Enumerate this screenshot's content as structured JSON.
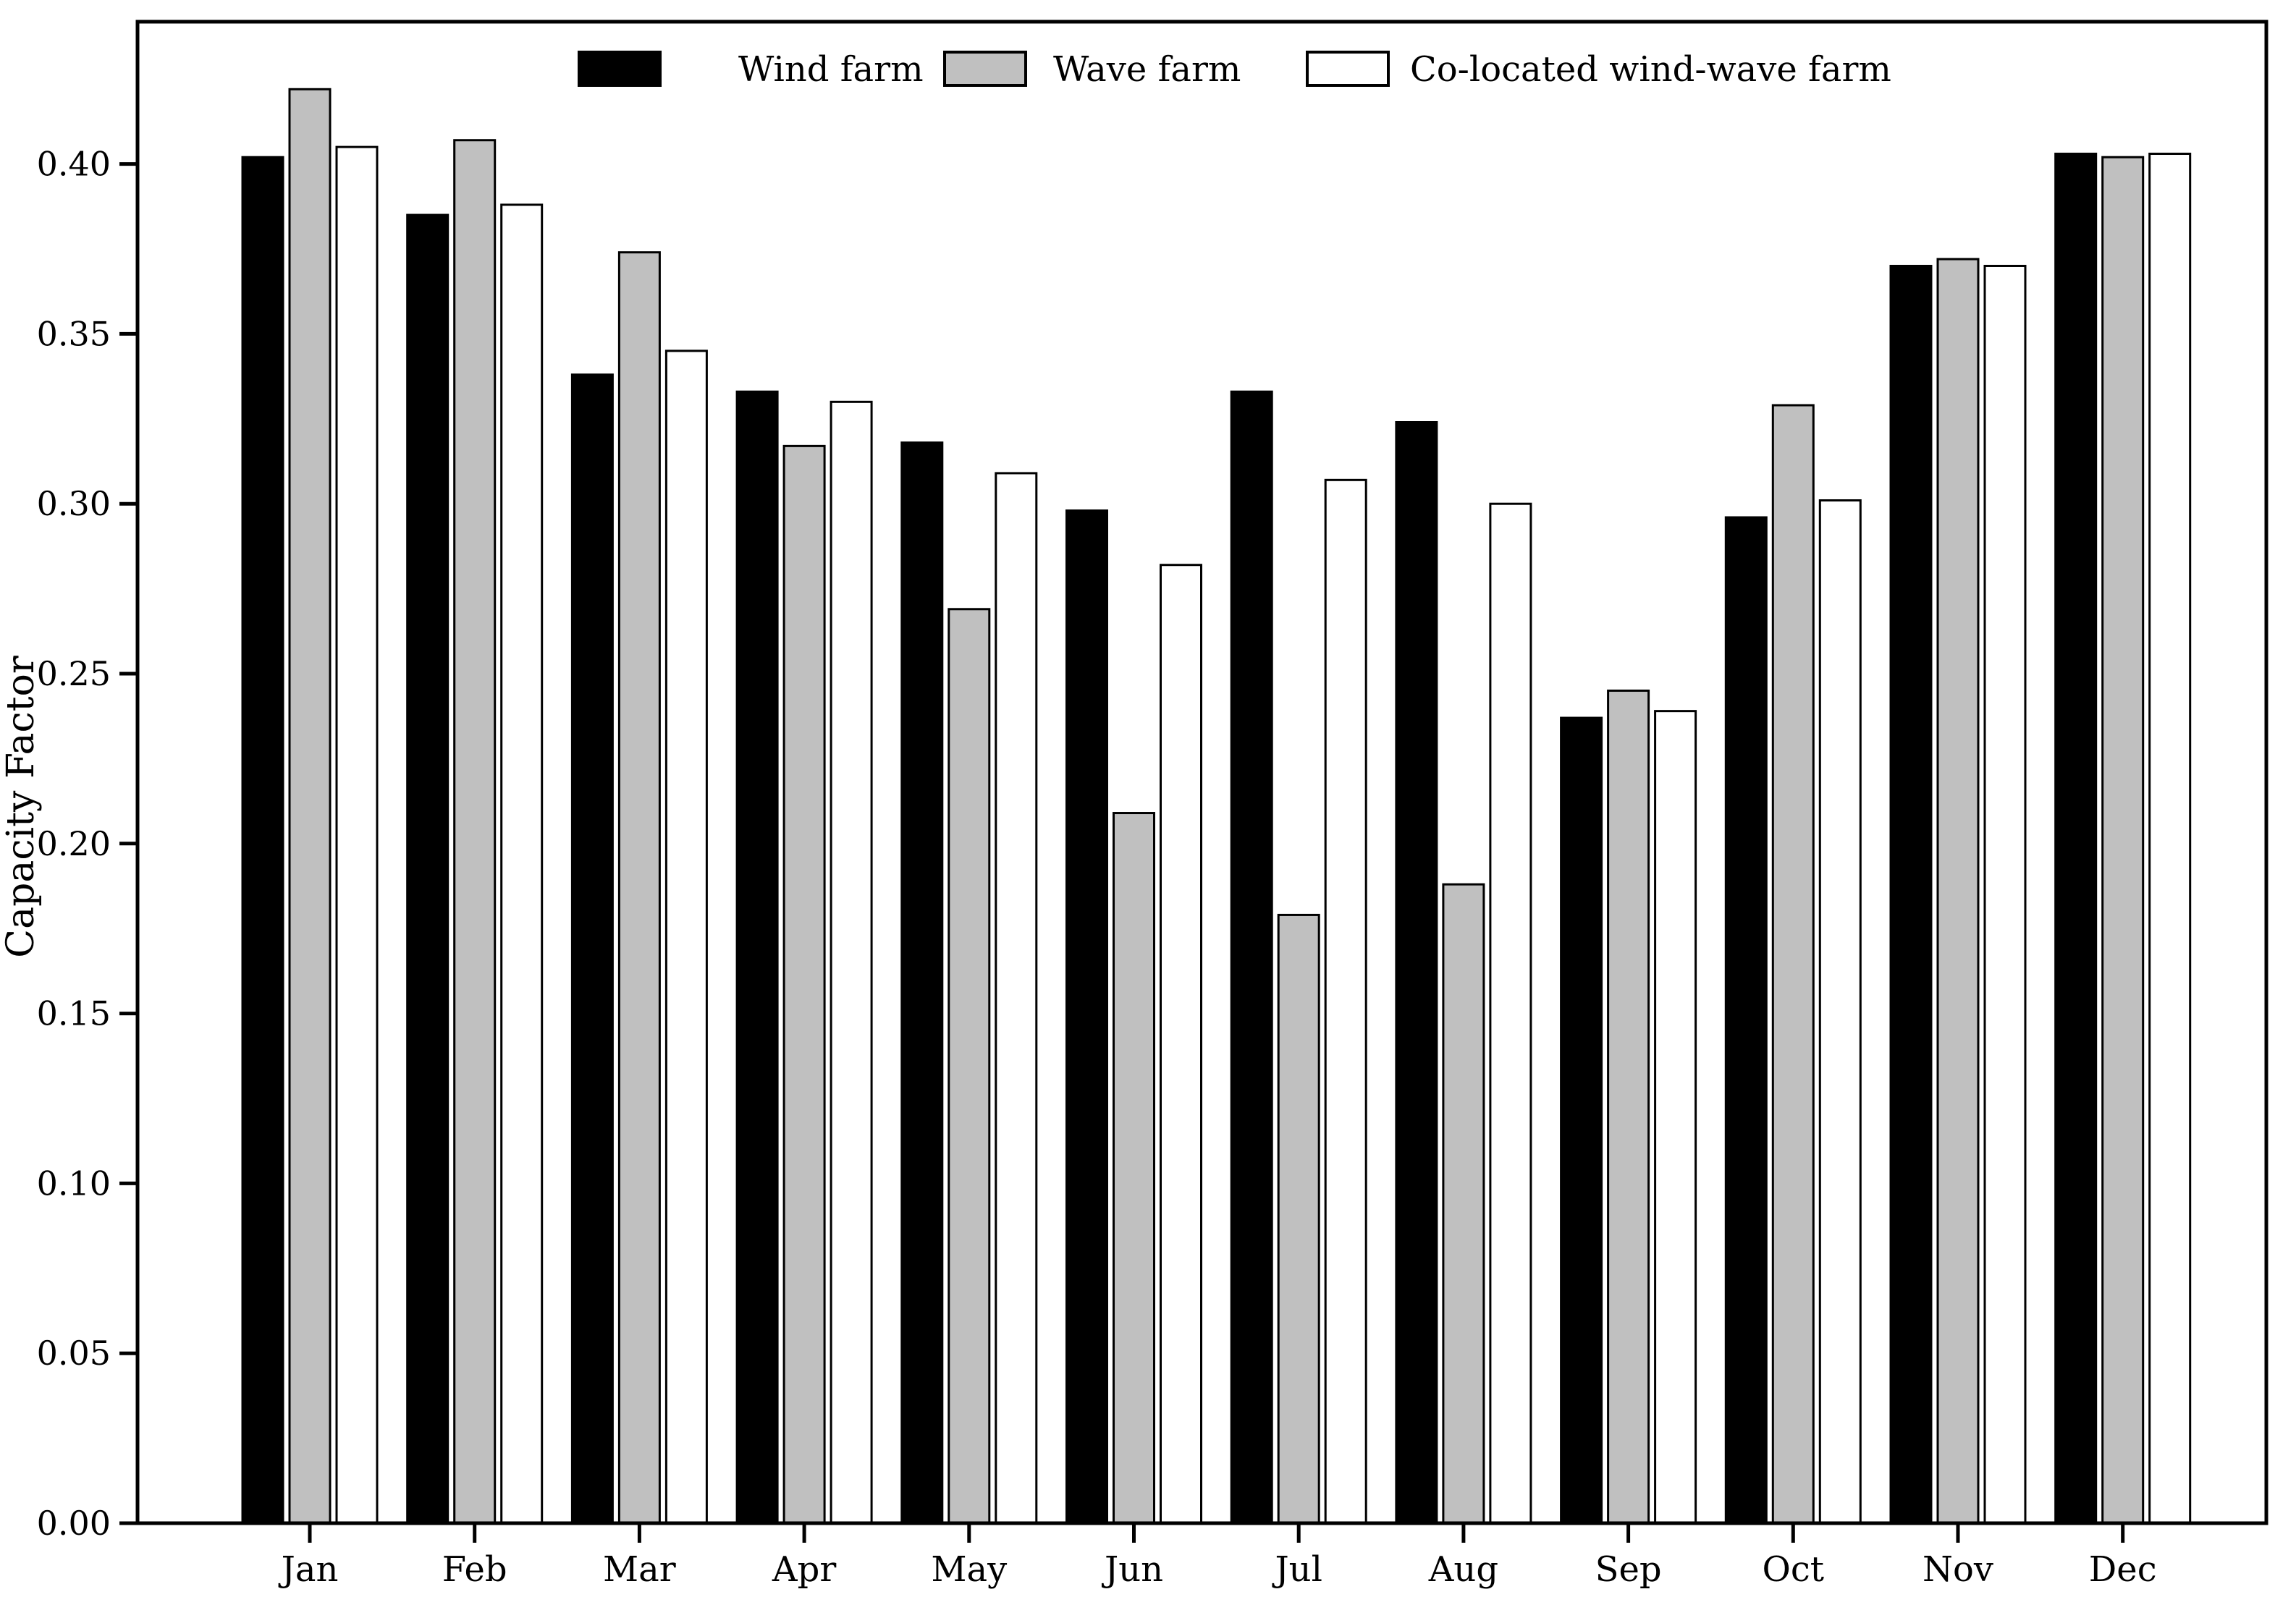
{
  "chart_data": {
    "type": "bar",
    "title": "",
    "xlabel": "",
    "ylabel": "Capacity Factor",
    "categories": [
      "Jan",
      "Feb",
      "Mar",
      "Apr",
      "May",
      "Jun",
      "Jul",
      "Aug",
      "Sep",
      "Oct",
      "Nov",
      "Dec"
    ],
    "series": [
      {
        "name": "Wind farm",
        "color": "#000000",
        "values": [
          0.402,
          0.385,
          0.338,
          0.333,
          0.318,
          0.298,
          0.333,
          0.324,
          0.237,
          0.296,
          0.37,
          0.403
        ]
      },
      {
        "name": "Wave farm",
        "color": "#c0c0c0",
        "values": [
          0.422,
          0.407,
          0.374,
          0.317,
          0.269,
          0.209,
          0.179,
          0.188,
          0.245,
          0.329,
          0.372,
          0.402
        ]
      },
      {
        "name": "Co-located wind-wave farm",
        "color": "#ffffff",
        "values": [
          0.405,
          0.388,
          0.345,
          0.33,
          0.309,
          0.282,
          0.307,
          0.3,
          0.239,
          0.301,
          0.37,
          0.403
        ]
      }
    ],
    "bar_edge_color": "#000000",
    "ylim": [
      0,
      0.442
    ],
    "yticks": [
      0.0,
      0.05,
      0.1,
      0.15,
      0.2,
      0.25,
      0.3,
      0.35,
      0.4
    ],
    "ytick_labels": [
      "0.00",
      "0.05",
      "0.10",
      "0.15",
      "0.20",
      "0.25",
      "0.30",
      "0.35",
      "0.40"
    ],
    "grid": false,
    "legend_position": "upper center",
    "frame": "full-box"
  }
}
